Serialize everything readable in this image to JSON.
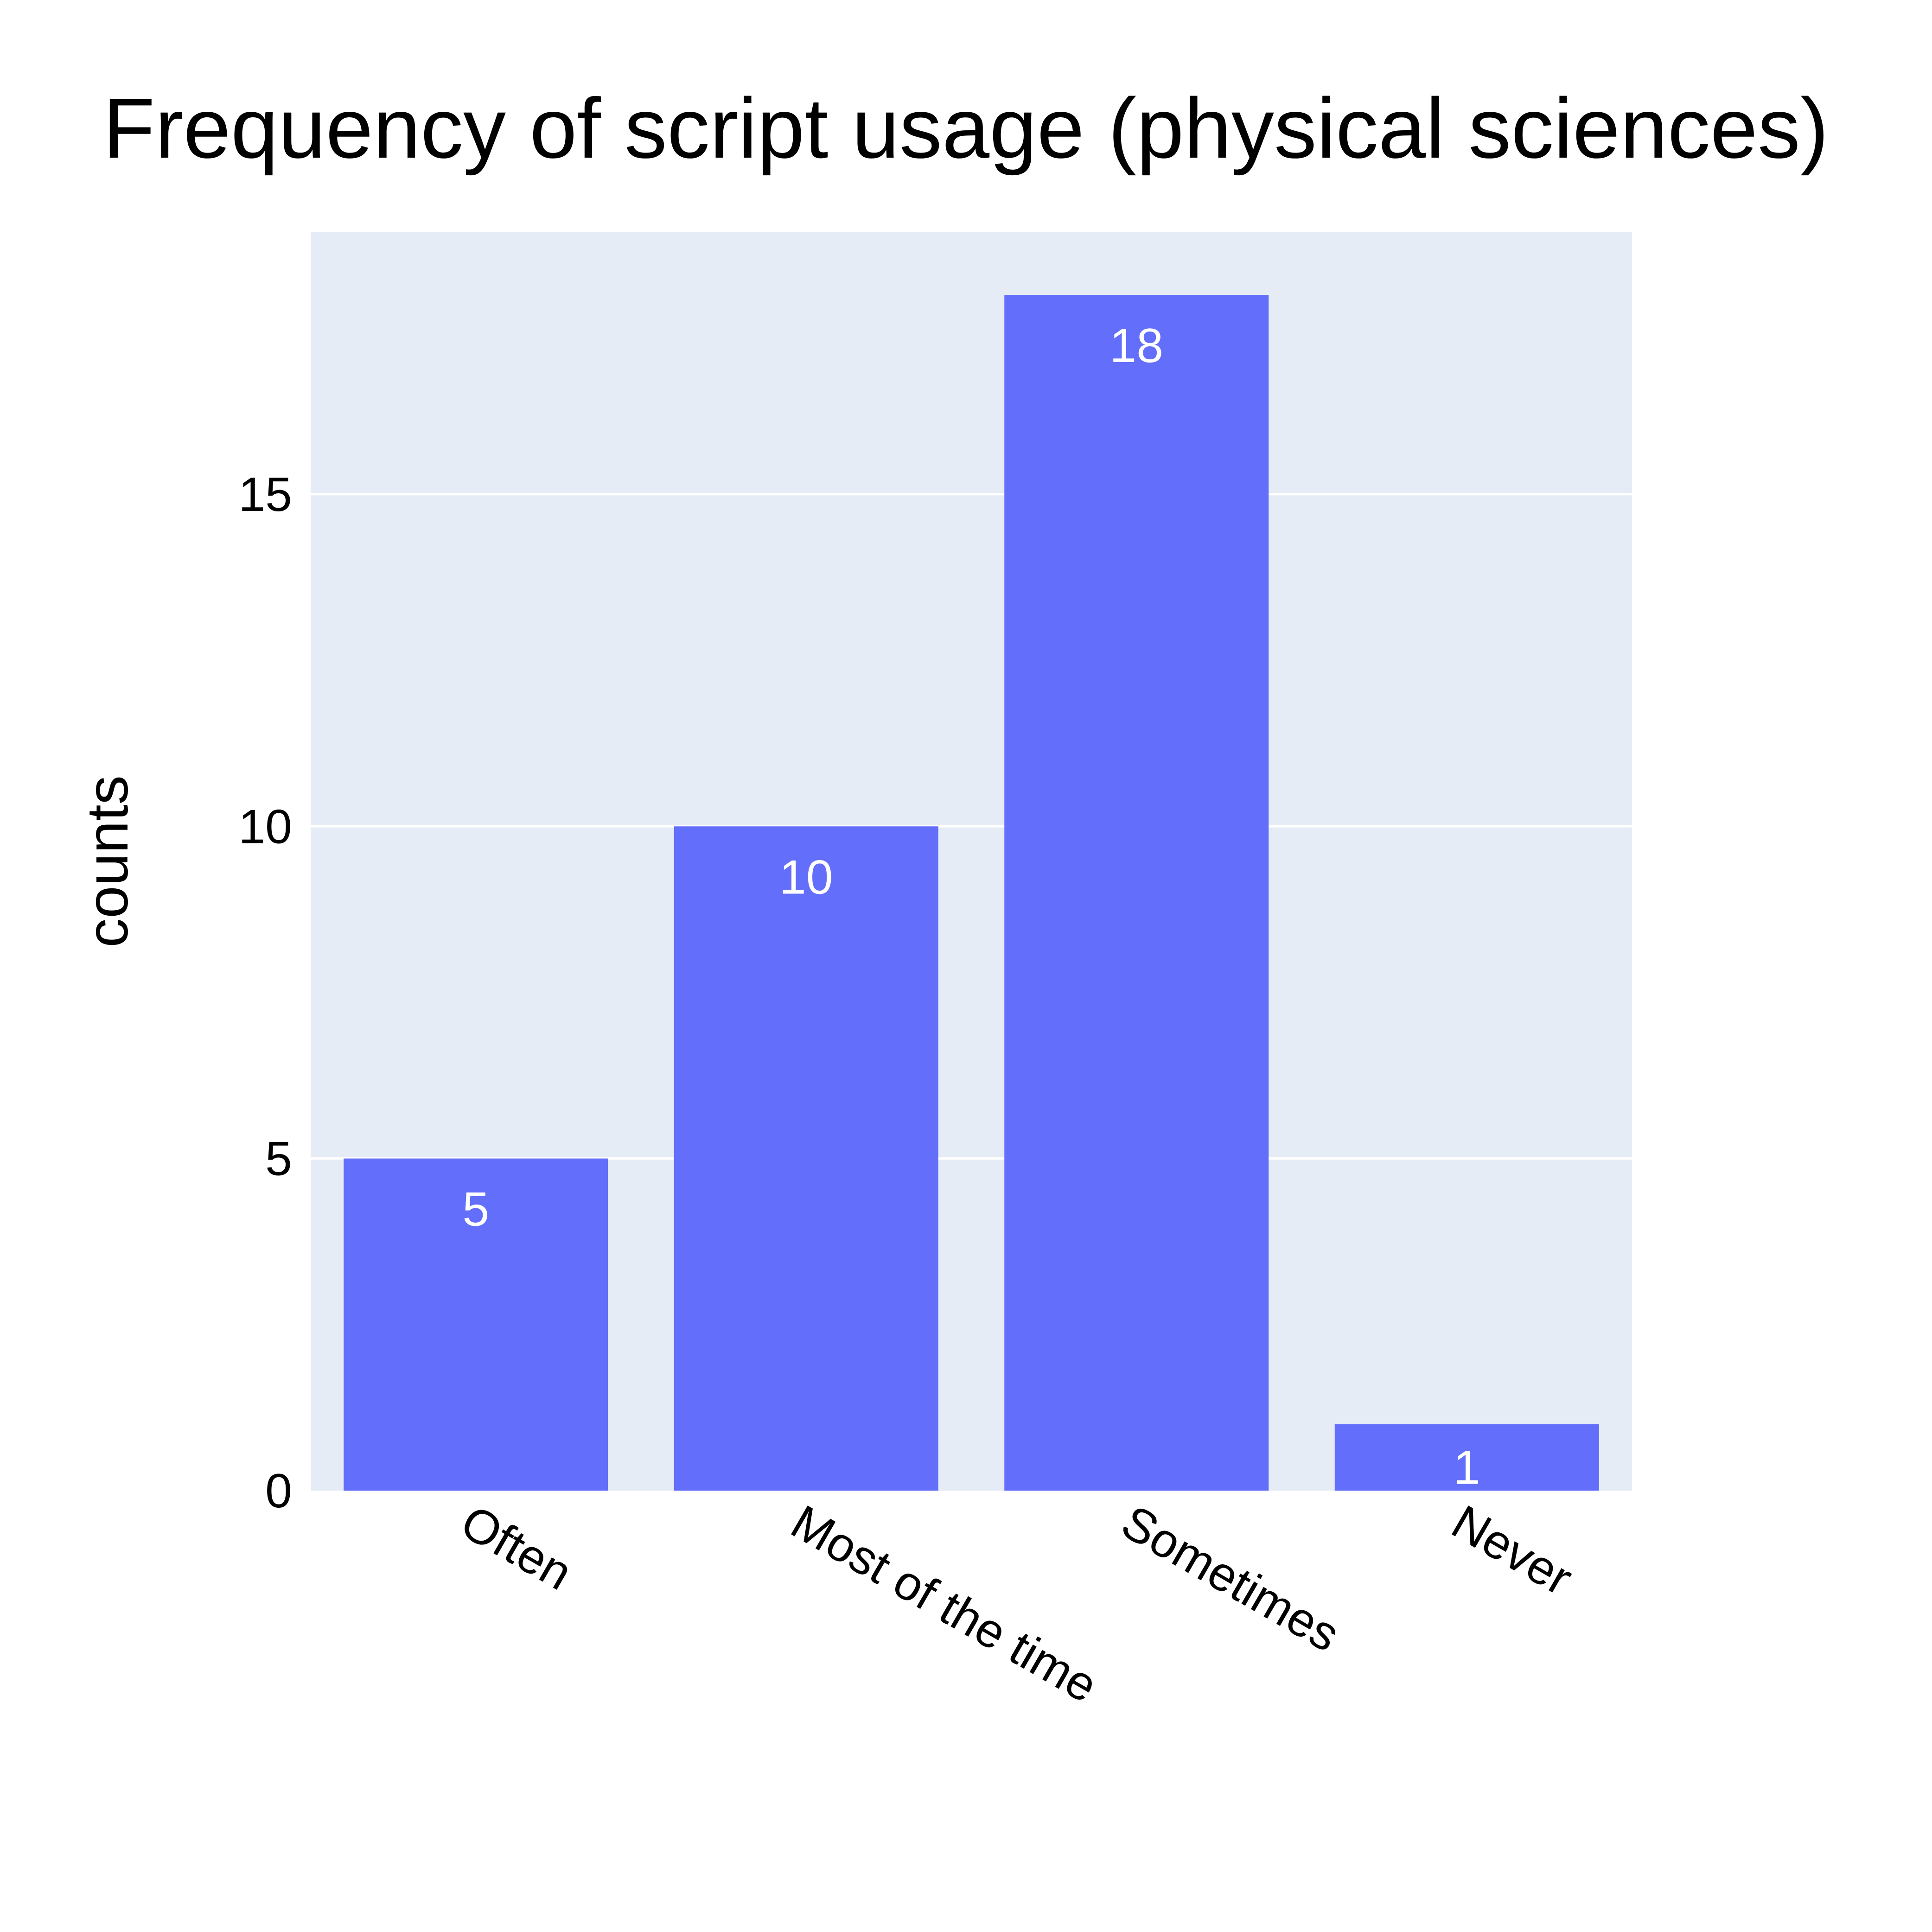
{
  "chart_data": {
    "type": "bar",
    "title": "Frequency of script usage (physical sciences)",
    "xlabel": "",
    "ylabel": "counts",
    "categories": [
      "Often",
      "Most of the time",
      "Sometimes",
      "Never"
    ],
    "values": [
      5,
      10,
      18,
      1
    ],
    "data_labels": [
      "5",
      "10",
      "18",
      "1"
    ],
    "yticks": [
      0,
      5,
      10,
      15
    ],
    "ytick_labels": [
      "0",
      "5",
      "10",
      "15"
    ],
    "ylim": [
      0,
      18.95
    ],
    "grid": true,
    "legend": "none",
    "colors": {
      "bar": "#636efa",
      "plot_background": "#e5ecf6",
      "grid": "#ffffff",
      "data_label": "#ffffff"
    }
  }
}
